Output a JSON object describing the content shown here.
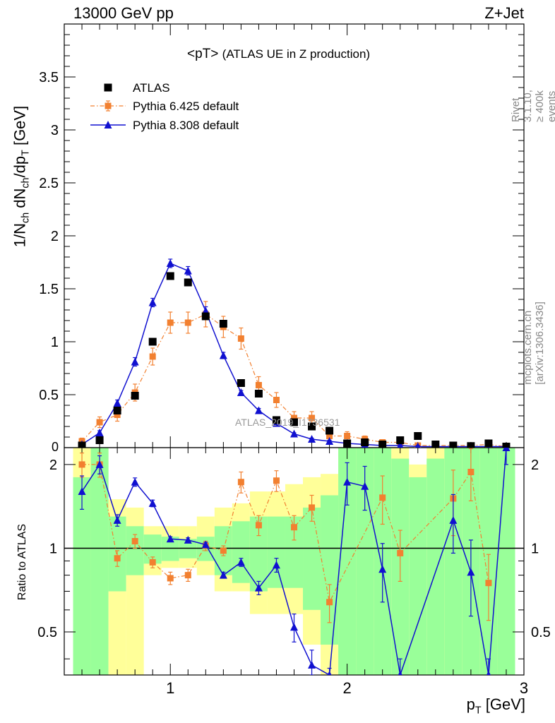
{
  "header": {
    "energy_label": "13000 GeV pp",
    "process_label": "Z+Jet"
  },
  "side": {
    "rivet": "Rivet 3.1.10, ≥ 400k events",
    "mcplots": "mcplots.cern.ch [arXiv:1306.3436]"
  },
  "watermark": "ATLAS_2019_I1736531",
  "ratio_ylabel": "Ratio to ATLAS",
  "chart_data": [
    {
      "type": "scatter",
      "title": "<pT>",
      "subtitle": "(ATLAS UE in Z production)",
      "xlabel": "p_T [GeV]",
      "ylabel": "1/N_ch dN_ch/dp_T [GeV]",
      "xlim": [
        0.4,
        3.0
      ],
      "ylim": [
        0,
        4.0
      ],
      "yticks": [
        0.5,
        1,
        1.5,
        2,
        2.5,
        3,
        3.5
      ],
      "ytick_labels": [
        "0.5",
        "1",
        "1.5",
        "2",
        "2.5",
        "3",
        "3.5"
      ],
      "ytick_zero_label": "0",
      "legend_position": "top-left",
      "x": [
        0.5,
        0.6,
        0.7,
        0.8,
        0.9,
        1.0,
        1.1,
        1.2,
        1.3,
        1.4,
        1.5,
        1.6,
        1.7,
        1.8,
        1.9,
        2.0,
        2.1,
        2.2,
        2.3,
        2.4,
        2.5,
        2.6,
        2.7,
        2.8,
        2.9
      ],
      "series": [
        {
          "name": "ATLAS",
          "style": "data",
          "color": "#000000",
          "values": [
            0.02,
            0.07,
            0.35,
            0.49,
            1.0,
            1.62,
            1.56,
            1.24,
            1.17,
            0.61,
            0.51,
            0.26,
            0.24,
            0.2,
            0.16,
            0.04,
            0.05,
            0.03,
            0.07,
            0.11,
            0.03,
            0.02,
            0.015,
            0.04,
            0.01
          ]
        },
        {
          "name": "Pythia 6.425 default",
          "style": "dashdot-square",
          "color": "#f28030",
          "values": [
            0.06,
            0.24,
            0.31,
            0.52,
            0.86,
            1.18,
            1.18,
            1.26,
            1.14,
            1.03,
            0.59,
            0.45,
            0.28,
            0.28,
            0.11,
            0.11,
            0.08,
            0.05,
            0.05,
            0.02,
            0.02,
            0.02,
            0.02,
            0.03,
            0.01
          ],
          "errors": [
            0.03,
            0.05,
            0.06,
            0.08,
            0.08,
            0.1,
            0.1,
            0.12,
            0.1,
            0.1,
            0.08,
            0.07,
            0.06,
            0.06,
            0.04,
            0.04,
            0.03,
            0.02,
            0.02,
            0.01,
            0.01,
            0.01,
            0.01,
            0.01,
            0.01
          ]
        },
        {
          "name": "Pythia 8.308 default",
          "style": "solid-triangle",
          "color": "#1010d0",
          "values": [
            0.03,
            0.14,
            0.42,
            0.81,
            1.37,
            1.74,
            1.67,
            1.29,
            0.87,
            0.52,
            0.35,
            0.23,
            0.13,
            0.08,
            0.06,
            0.04,
            0.03,
            0.02,
            0.02,
            0.01,
            0.01,
            0.01,
            0.01,
            0.01,
            0.01
          ],
          "errors": [
            0.01,
            0.02,
            0.03,
            0.04,
            0.04,
            0.04,
            0.04,
            0.04,
            0.03,
            0.02,
            0.02,
            0.02,
            0.01,
            0.01,
            0.01,
            0.01,
            0.01,
            0.01,
            0.01,
            0.01,
            0.01,
            0.01,
            0.01,
            0.01,
            0.01
          ]
        }
      ]
    },
    {
      "type": "scatter",
      "ylabel": "Ratio to ATLAS",
      "xlabel": "p_T [GeV]",
      "xlim": [
        0.4,
        3.0
      ],
      "ylim": [
        0.35,
        2.3
      ],
      "xticks": [
        1,
        2,
        3
      ],
      "xtick_labels": [
        "1",
        "2",
        "3"
      ],
      "yticks": [
        0.5,
        1,
        2
      ],
      "ytick_labels": [
        "0.5",
        "1",
        "2"
      ],
      "reference_line": 1,
      "bands": {
        "x_edges": [
          0.45,
          0.55,
          0.65,
          0.75,
          0.85,
          0.95,
          1.05,
          1.15,
          1.25,
          1.35,
          1.45,
          1.55,
          1.65,
          1.75,
          1.85,
          1.95,
          2.05,
          2.15,
          2.25,
          2.35,
          2.45,
          2.55,
          2.65,
          2.75,
          2.85,
          2.95
        ],
        "inner_color": "#99ff99",
        "outer_color": "#ffff99",
        "inner_low": [
          0.35,
          0.35,
          0.7,
          0.8,
          0.88,
          0.9,
          0.92,
          0.9,
          0.8,
          0.75,
          0.7,
          0.72,
          0.72,
          0.6,
          0.45,
          0.35,
          0.35,
          0.35,
          0.35,
          0.35,
          0.35,
          0.35,
          0.35,
          0.35,
          0.35
        ],
        "inner_high": [
          1.8,
          2.3,
          1.3,
          1.2,
          1.12,
          1.1,
          1.08,
          1.1,
          1.2,
          1.25,
          1.3,
          1.3,
          1.3,
          1.4,
          1.55,
          2.3,
          2.3,
          2.3,
          2.1,
          1.8,
          2.1,
          2.3,
          2.3,
          2.3,
          2.3
        ],
        "outer_low": [
          0.35,
          0.35,
          0.35,
          0.35,
          0.8,
          0.85,
          0.85,
          0.8,
          0.7,
          0.7,
          0.58,
          0.58,
          0.58,
          0.45,
          0.35,
          0.35,
          0.35,
          0.35,
          0.35,
          0.35,
          0.35,
          0.35,
          0.35,
          0.35,
          0.35
        ],
        "outer_high": [
          2.3,
          2.3,
          1.5,
          1.4,
          1.2,
          1.2,
          1.2,
          1.3,
          1.4,
          1.45,
          1.6,
          1.6,
          1.7,
          1.8,
          1.85,
          2.3,
          2.3,
          2.3,
          2.3,
          2.0,
          2.3,
          2.3,
          2.3,
          2.3,
          2.3
        ]
      },
      "series": [
        {
          "name": "Pythia 6.425 default",
          "color": "#f28030",
          "x": [
            0.5,
            0.6,
            0.7,
            0.8,
            0.9,
            1.0,
            1.1,
            1.2,
            1.3,
            1.4,
            1.5,
            1.6,
            1.7,
            1.8,
            1.9,
            2.2,
            2.3,
            2.6,
            2.7,
            2.8
          ],
          "values": [
            2.0,
            2.0,
            0.92,
            1.06,
            0.89,
            0.78,
            0.8,
            1.02,
            0.98,
            1.73,
            1.21,
            1.75,
            1.19,
            1.4,
            0.64,
            1.52,
            0.96,
            1.51,
            1.88,
            0.75
          ],
          "errors": [
            0.2,
            0.2,
            0.06,
            0.06,
            0.04,
            0.04,
            0.04,
            0.04,
            0.04,
            0.15,
            0.1,
            0.15,
            0.12,
            0.15,
            0.1,
            0.3,
            0.2,
            0.4,
            0.4,
            0.2
          ]
        },
        {
          "name": "Pythia 8.308 default",
          "color": "#1010d0",
          "x": [
            0.5,
            0.6,
            0.7,
            0.8,
            0.9,
            1.0,
            1.1,
            1.2,
            1.3,
            1.4,
            1.5,
            1.6,
            1.7,
            1.8,
            1.9,
            2.0,
            2.1,
            2.2,
            2.3,
            2.6,
            2.7,
            2.8,
            2.9
          ],
          "values": [
            1.6,
            2.0,
            1.26,
            1.73,
            1.45,
            1.08,
            1.07,
            1.03,
            0.8,
            0.89,
            0.72,
            0.87,
            0.52,
            0.38,
            0.32,
            1.73,
            1.67,
            0.84,
            0.3,
            1.26,
            0.82,
            0.3,
            2.3
          ],
          "errors": [
            0.22,
            0.15,
            0.06,
            0.06,
            0.04,
            0.02,
            0.02,
            0.02,
            0.02,
            0.03,
            0.04,
            0.05,
            0.06,
            0.05,
            0.05,
            0.3,
            0.3,
            0.2,
            0.1,
            0.3,
            0.25,
            0.1,
            0.3
          ]
        }
      ]
    }
  ]
}
